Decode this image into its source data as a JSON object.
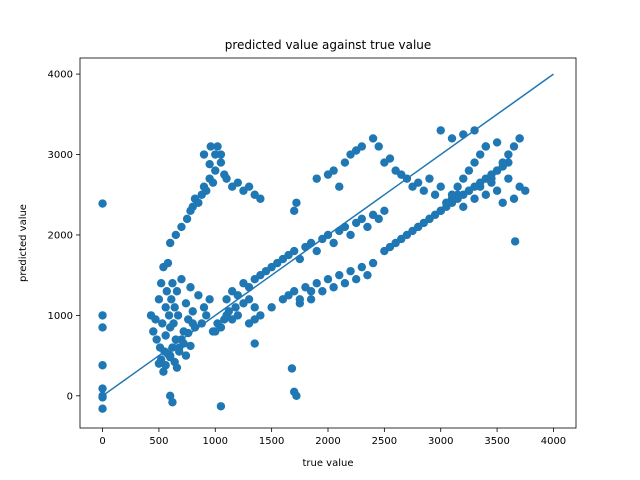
{
  "chart_data": {
    "type": "scatter",
    "title": "predicted value against true value",
    "xlabel": "true value",
    "ylabel": "predicted value",
    "xlim": [
      -200,
      4200
    ],
    "ylim": [
      -400,
      4200
    ],
    "xticks": [
      0,
      500,
      1000,
      1500,
      2000,
      2500,
      3000,
      3500,
      4000
    ],
    "yticks": [
      0,
      1000,
      2000,
      3000,
      4000
    ],
    "grid": false,
    "colors": {
      "points": "#1f77b4",
      "line": "#1f77b4"
    },
    "series": [
      {
        "type": "line",
        "x": [
          0,
          4000
        ],
        "y": [
          0,
          4000
        ]
      },
      {
        "type": "scatter",
        "x": [
          0,
          0,
          0,
          0,
          0,
          0,
          0,
          0,
          430,
          450,
          470,
          480,
          500,
          510,
          520,
          530,
          540,
          550,
          560,
          560,
          570,
          580,
          590,
          600,
          600,
          610,
          620,
          630,
          640,
          650,
          660,
          670,
          680,
          700,
          720,
          740,
          760,
          780,
          800,
          820,
          850,
          880,
          900,
          920,
          950,
          980,
          500,
          520,
          540,
          560,
          580,
          600,
          620,
          640,
          660,
          680,
          700,
          720,
          740,
          760,
          780,
          800,
          600,
          650,
          700,
          750,
          780,
          800,
          820,
          850,
          880,
          900,
          920,
          950,
          980,
          1000,
          1000,
          1020,
          1050,
          1080,
          1100,
          1150,
          1200,
          1250,
          1300,
          1350,
          1400,
          1000,
          1020,
          1050,
          1080,
          1100,
          1120,
          1150,
          1180,
          1200,
          1250,
          1300,
          1350,
          1100,
          1150,
          1200,
          1250,
          1300,
          1350,
          1400,
          1450,
          1500,
          1550,
          1600,
          1650,
          1700,
          1750,
          1800,
          1850,
          1900,
          1950,
          2000,
          2050,
          2100,
          2150,
          2200,
          2250,
          2300,
          2350,
          2400,
          2450,
          2500,
          1300,
          1350,
          1400,
          1500,
          1600,
          1650,
          1700,
          1750,
          1800,
          1850,
          1900,
          1950,
          2000,
          2050,
          2100,
          2150,
          2200,
          2250,
          2300,
          2350,
          2400,
          1700,
          1720,
          1900,
          2000,
          2050,
          2100,
          2150,
          2200,
          2250,
          2300,
          2400,
          2450,
          2500,
          2550,
          2600,
          2650,
          2700,
          2750,
          2800,
          2850,
          2900,
          2950,
          3000,
          3050,
          3100,
          3150,
          3200,
          3250,
          3300,
          3350,
          3400,
          3450,
          3500,
          3550,
          3600,
          3650,
          3700,
          3750,
          2500,
          2550,
          2600,
          2650,
          2700,
          2750,
          2800,
          2850,
          2900,
          2950,
          3000,
          3050,
          3100,
          3150,
          3200,
          3250,
          3300,
          3350,
          3400,
          3450,
          3500,
          3550,
          3600,
          2800,
          2900,
          3000,
          3050,
          3100,
          3150,
          3200,
          3250,
          3300,
          3350,
          3400,
          3450,
          3500,
          3550,
          3600,
          3650,
          3700,
          950,
          1050,
          1680,
          1700,
          1720,
          600,
          620,
          1050,
          1350,
          1750,
          1850,
          900,
          960,
          3000,
          3100,
          3200,
          3300,
          3400,
          3500,
          3700,
          3660
        ],
        "y": [
          2390,
          1000,
          850,
          380,
          90,
          -20,
          -160,
          0,
          1000,
          800,
          950,
          700,
          1200,
          600,
          1400,
          900,
          1600,
          550,
          1100,
          750,
          1300,
          1650,
          1000,
          850,
          500,
          1200,
          1400,
          900,
          1100,
          700,
          1300,
          1000,
          600,
          1450,
          800,
          1150,
          950,
          1350,
          1050,
          850,
          1250,
          900,
          1100,
          1000,
          1200,
          800,
          400,
          450,
          300,
          380,
          520,
          480,
          600,
          420,
          350,
          550,
          700,
          650,
          500,
          780,
          620,
          900,
          1900,
          2000,
          2100,
          2200,
          2300,
          2350,
          2450,
          2400,
          2500,
          2600,
          2550,
          2700,
          2650,
          2800,
          3000,
          3100,
          2900,
          2750,
          2700,
          2600,
          2650,
          2550,
          2600,
          2500,
          2450,
          800,
          900,
          850,
          950,
          1000,
          1050,
          950,
          1100,
          1000,
          1150,
          1200,
          1100,
          1200,
          1300,
          1250,
          1400,
          1350,
          1450,
          1500,
          1550,
          1600,
          1650,
          1700,
          1750,
          1800,
          1700,
          1850,
          1900,
          1800,
          1950,
          2000,
          1900,
          2050,
          2100,
          2000,
          2150,
          2200,
          2100,
          2250,
          2200,
          2300,
          900,
          950,
          1000,
          1100,
          1200,
          1250,
          1300,
          1150,
          1350,
          1200,
          1400,
          1300,
          1450,
          1350,
          1500,
          1400,
          1550,
          1450,
          1600,
          1500,
          1650,
          2300,
          2400,
          2700,
          2750,
          2800,
          2600,
          2900,
          3000,
          3050,
          3100,
          3200,
          3100,
          2900,
          2950,
          2800,
          2750,
          2700,
          2600,
          2650,
          2550,
          2700,
          2500,
          2600,
          2400,
          2450,
          2500,
          2350,
          2550,
          2450,
          2600,
          2500,
          2650,
          2550,
          2400,
          2700,
          2450,
          2600,
          2550,
          1800,
          1850,
          1900,
          1950,
          2000,
          2050,
          2100,
          2150,
          2200,
          2250,
          2300,
          2350,
          2400,
          2450,
          2500,
          2550,
          2600,
          2650,
          2700,
          2750,
          2800,
          2850,
          2900,
          2100,
          2200,
          2300,
          2400,
          2500,
          2600,
          2700,
          2800,
          2900,
          3000,
          3100,
          2700,
          2800,
          2900,
          3000,
          3100,
          3200,
          2880,
          3000,
          340,
          50,
          0,
          0,
          -80,
          -130,
          650,
          1200,
          1300,
          3000,
          3100,
          3300,
          3200,
          3250,
          3300,
          3100,
          3150,
          3200,
          1920
        ]
      }
    ]
  }
}
